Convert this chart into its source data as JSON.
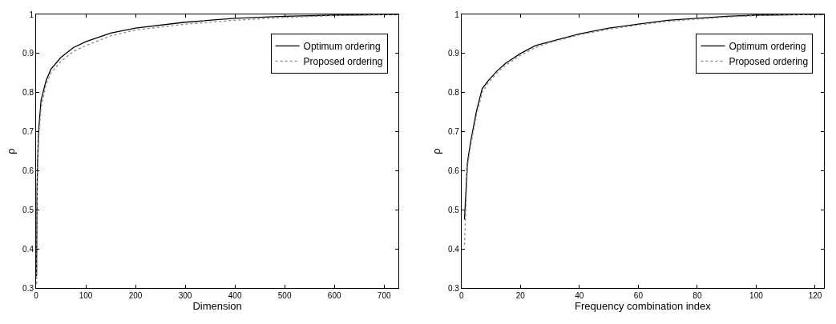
{
  "chart_data": [
    {
      "type": "line",
      "xlabel": "Dimension",
      "ylabel": "ρ",
      "xlim": [
        0,
        729
      ],
      "xticks": [
        0,
        100,
        200,
        300,
        400,
        500,
        600,
        700
      ],
      "ylim": [
        0.3,
        1
      ],
      "yticks": [
        0.3,
        0.4,
        0.5,
        0.6,
        0.7,
        0.8,
        0.9,
        1
      ],
      "legend": "top right",
      "marker": "none",
      "x": [
        1,
        2,
        3,
        5,
        10,
        20,
        30,
        50,
        75,
        100,
        150,
        200,
        300,
        400,
        500,
        600,
        729
      ],
      "series": [
        {
          "name": "Optimum ordering",
          "color": "#000000",
          "line_style": "solid",
          "values": [
            0.33,
            0.55,
            0.62,
            0.7,
            0.78,
            0.83,
            0.86,
            0.89,
            0.915,
            0.93,
            0.952,
            0.965,
            0.98,
            0.99,
            0.995,
            0.998,
            1.0
          ]
        },
        {
          "name": "Proposed ordering",
          "color": "#888888",
          "line_style": "dotted",
          "values": [
            0.31,
            0.52,
            0.6,
            0.68,
            0.76,
            0.82,
            0.85,
            0.88,
            0.905,
            0.92,
            0.945,
            0.96,
            0.975,
            0.985,
            0.992,
            0.997,
            1.0
          ]
        }
      ]
    },
    {
      "type": "line",
      "xlabel": "Frequency combination index",
      "ylabel": "ρ",
      "xlim": [
        0,
        123
      ],
      "xticks": [
        0,
        20,
        40,
        60,
        80,
        100,
        120
      ],
      "ylim": [
        0.3,
        1
      ],
      "yticks": [
        0.3,
        0.4,
        0.5,
        0.6,
        0.7,
        0.8,
        0.9,
        1
      ],
      "legend": "top right",
      "marker": "none",
      "x": [
        1,
        2,
        3,
        5,
        7,
        9,
        12,
        15,
        20,
        25,
        30,
        40,
        50,
        60,
        70,
        80,
        90,
        100,
        110,
        123
      ],
      "series": [
        {
          "name": "Optimum ordering",
          "color": "#000000",
          "line_style": "solid",
          "values": [
            0.475,
            0.62,
            0.67,
            0.75,
            0.81,
            0.83,
            0.855,
            0.875,
            0.9,
            0.92,
            0.93,
            0.95,
            0.965,
            0.975,
            0.985,
            0.99,
            0.995,
            0.998,
            0.999,
            1.0
          ]
        },
        {
          "name": "Proposed ordering",
          "color": "#888888",
          "line_style": "dotted",
          "values": [
            0.41,
            0.61,
            0.66,
            0.74,
            0.8,
            0.825,
            0.85,
            0.87,
            0.895,
            0.915,
            0.928,
            0.948,
            0.962,
            0.973,
            0.982,
            0.988,
            0.993,
            0.997,
            0.999,
            1.0
          ]
        }
      ]
    }
  ]
}
